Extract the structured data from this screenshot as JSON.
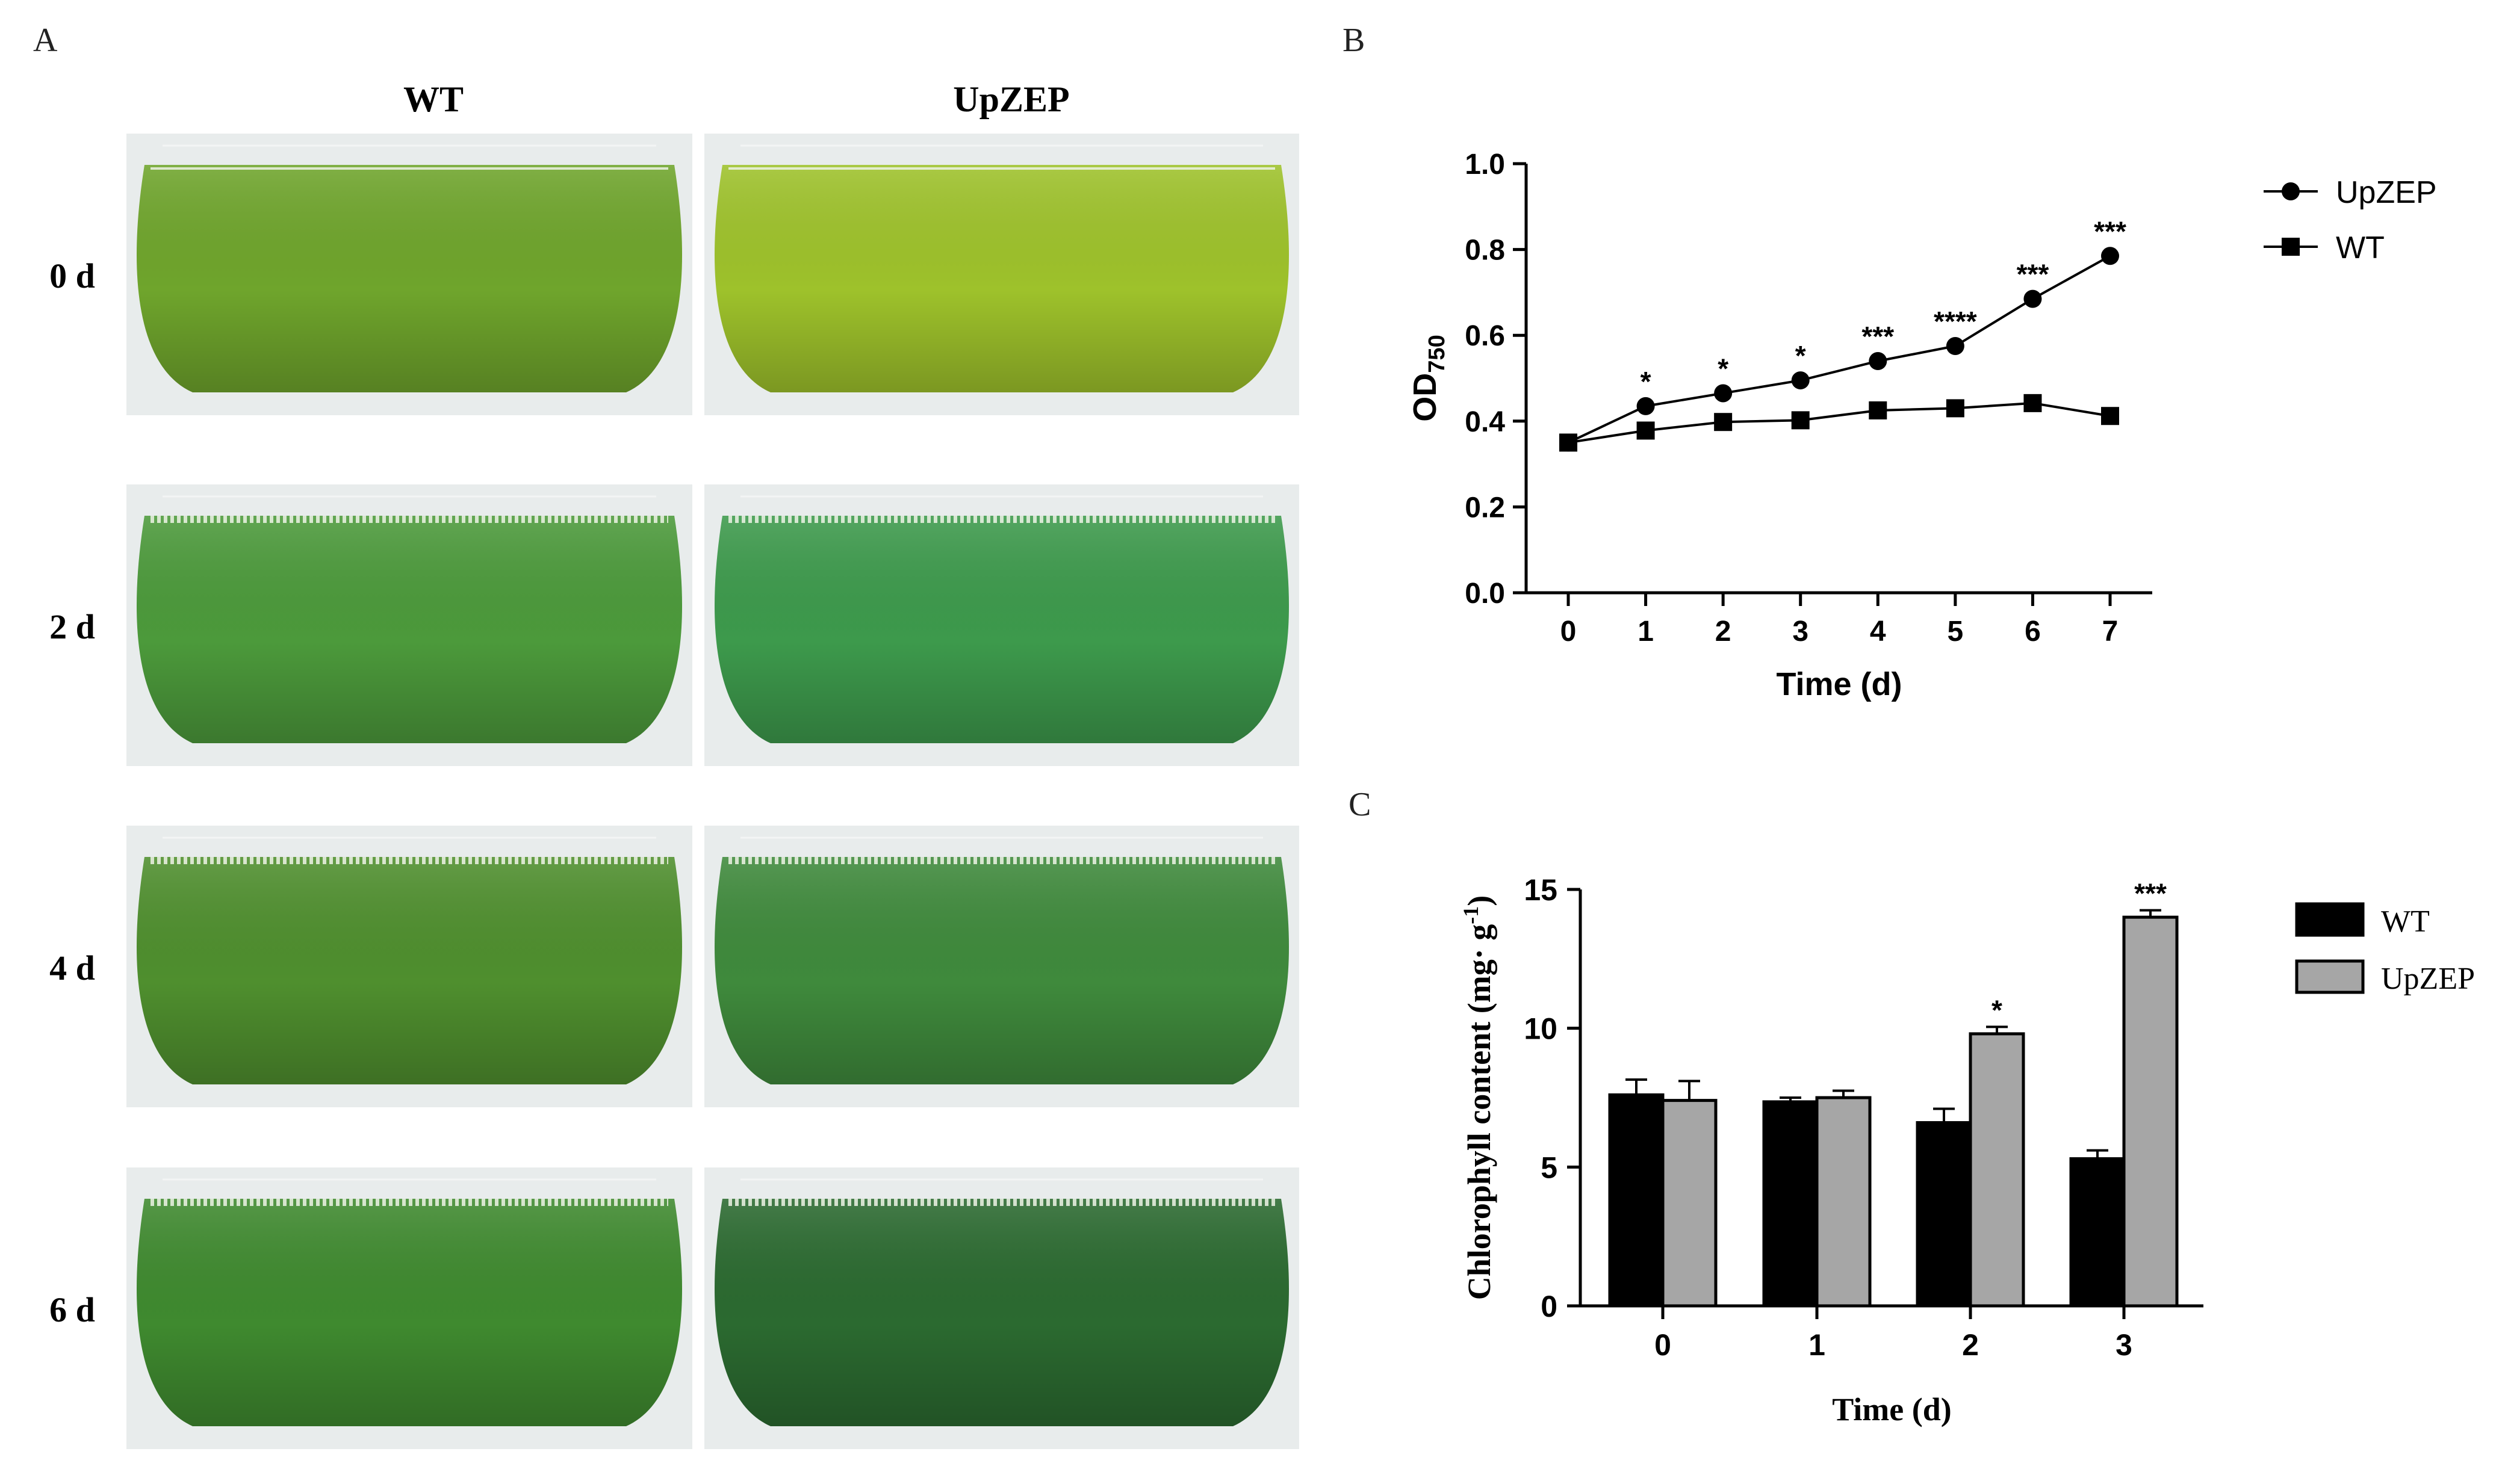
{
  "panels": {
    "a": {
      "label": "A",
      "columns": [
        "WT",
        "UpZEP"
      ],
      "rows": [
        "0 d",
        "2 d",
        "4 d",
        "6 d"
      ],
      "colors": {
        "0 d": [
          "#6fa52c",
          "#9ec22b"
        ],
        "2 d": [
          "#4c9a3b",
          "#3d9a4c"
        ],
        "4 d": [
          "#4f8f2e",
          "#3f8a3c"
        ],
        "6 d": [
          "#3f8a2f",
          "#2b6a30"
        ]
      }
    },
    "b": {
      "label": "B"
    },
    "c": {
      "label": "C"
    }
  },
  "chart_data": [
    {
      "panel": "B",
      "type": "line",
      "xlabel": "Time (d)",
      "ylabel": "OD",
      "ylabel_subscript": "750",
      "x": [
        0,
        1,
        2,
        3,
        4,
        5,
        6,
        7
      ],
      "xticks": [
        "0",
        "1",
        "2",
        "3",
        "4",
        "5",
        "6",
        "7"
      ],
      "ylim": [
        0.0,
        1.0
      ],
      "yticks": [
        "0.0",
        "0.2",
        "0.4",
        "0.6",
        "0.8",
        "1.0"
      ],
      "legend_position": "right",
      "series": [
        {
          "name": "UpZEP",
          "marker": "circle",
          "values": [
            0.35,
            0.435,
            0.465,
            0.495,
            0.54,
            0.575,
            0.685,
            0.785
          ]
        },
        {
          "name": "WT",
          "marker": "square",
          "values": [
            0.35,
            0.378,
            0.398,
            0.402,
            0.425,
            0.43,
            0.442,
            0.412
          ]
        }
      ],
      "annotations": [
        "",
        "*",
        "*",
        "*",
        "***",
        "****",
        "***",
        "***"
      ]
    },
    {
      "panel": "C",
      "type": "bar",
      "xlabel": "Time (d)",
      "ylabel": "Chlorophyll content (mg· g",
      "ylabel_superscript": "-1",
      "ylabel_close": ")",
      "categories": [
        "0",
        "1",
        "2",
        "3"
      ],
      "ylim": [
        0,
        15
      ],
      "yticks": [
        "0",
        "5",
        "10",
        "15"
      ],
      "legend_position": "right",
      "series": [
        {
          "name": "WT",
          "color": "#000000",
          "values": [
            7.6,
            7.35,
            6.6,
            5.3
          ],
          "errors": [
            0.55,
            0.15,
            0.5,
            0.3
          ]
        },
        {
          "name": "UpZEP",
          "color": "#a6a6a6",
          "values": [
            7.4,
            7.5,
            9.8,
            14.0
          ],
          "errors": [
            0.7,
            0.25,
            0.25,
            0.25
          ]
        }
      ],
      "annotations": [
        "",
        "",
        "*",
        "***"
      ]
    }
  ]
}
